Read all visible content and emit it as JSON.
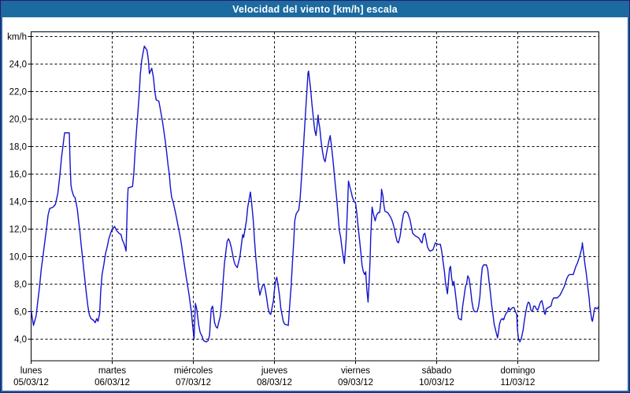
{
  "window": {
    "title": "Velocidad del viento [km/h] escala",
    "title_bar_color": "#1b6aa0",
    "border_outer_color": "#0b2d63",
    "border_inner_color": "#2e5fa5"
  },
  "chart_data": {
    "type": "line",
    "title": "Velocidad del viento [km/h] escala",
    "ylabel": "km/h",
    "grid": "dashed",
    "legend": "none",
    "colors": {
      "line": "#1414cc",
      "grid": "#000000",
      "frame": "#000000",
      "text": "#000000"
    },
    "y_axis": {
      "unit_label": "km/h",
      "range_shown": [
        2.5,
        26.5
      ],
      "gridline_step": 2,
      "ticks": [
        {
          "value": 26,
          "label": "km/h"
        },
        {
          "value": 24,
          "label": "24,0"
        },
        {
          "value": 22,
          "label": "22,0"
        },
        {
          "value": 20,
          "label": "20,0"
        },
        {
          "value": 18,
          "label": "18,0"
        },
        {
          "value": 16,
          "label": "16,0"
        },
        {
          "value": 14,
          "label": "14,0"
        },
        {
          "value": 12,
          "label": "12,0"
        },
        {
          "value": 10,
          "label": "10,0"
        },
        {
          "value": 8,
          "label": "8,0"
        },
        {
          "value": 6,
          "label": "6,0"
        },
        {
          "value": 4,
          "label": "4,0"
        }
      ]
    },
    "x_axis": {
      "unit": "hours_from_monday_00:00",
      "range": [
        0,
        168
      ],
      "days": [
        {
          "name": "lunes",
          "date": "05/03/12"
        },
        {
          "name": "martes",
          "date": "06/03/12"
        },
        {
          "name": "miércoles",
          "date": "07/03/12"
        },
        {
          "name": "jueves",
          "date": "08/03/12"
        },
        {
          "name": "viernes",
          "date": "09/03/12"
        },
        {
          "name": "sábado",
          "date": "10/03/12"
        },
        {
          "name": "domingo",
          "date": "11/03/12"
        }
      ]
    },
    "series": [
      [
        0,
        6.1
      ],
      [
        0.7,
        5.0
      ],
      [
        1.5,
        5.7
      ],
      [
        2,
        6.8
      ],
      [
        2.5,
        7.8
      ],
      [
        3,
        9.1
      ],
      [
        3.5,
        10.0
      ],
      [
        4,
        11.0
      ],
      [
        4.6,
        12.1
      ],
      [
        5,
        13.0
      ],
      [
        5.5,
        13.5
      ],
      [
        6.5,
        13.6
      ],
      [
        7.2,
        13.8
      ],
      [
        7.9,
        14.6
      ],
      [
        8.5,
        15.9
      ],
      [
        9,
        17.2
      ],
      [
        9.5,
        18.2
      ],
      [
        9.9,
        19.0
      ],
      [
        11.3,
        19.0
      ],
      [
        11.5,
        17.0
      ],
      [
        11.8,
        15.2
      ],
      [
        12.1,
        14.8
      ],
      [
        12.6,
        14.4
      ],
      [
        13,
        14.3
      ],
      [
        13.4,
        13.8
      ],
      [
        13.7,
        13.4
      ],
      [
        14,
        12.7
      ],
      [
        14.4,
        11.9
      ],
      [
        14.8,
        10.9
      ],
      [
        15.2,
        10.0
      ],
      [
        15.6,
        9.0
      ],
      [
        16,
        8.1
      ],
      [
        16.4,
        7.2
      ],
      [
        16.8,
        6.4
      ],
      [
        17.2,
        5.8
      ],
      [
        17.7,
        5.5
      ],
      [
        18.3,
        5.4
      ],
      [
        18.7,
        5.3
      ],
      [
        19,
        5.2
      ],
      [
        19.4,
        5.5
      ],
      [
        19.8,
        5.3
      ],
      [
        20.3,
        5.9
      ],
      [
        20.6,
        7.5
      ],
      [
        21,
        8.7
      ],
      [
        21.5,
        9.4
      ],
      [
        22,
        10.2
      ],
      [
        22.5,
        10.7
      ],
      [
        23,
        11.3
      ],
      [
        23.5,
        11.7
      ],
      [
        24,
        12.0
      ],
      [
        24.7,
        12.2
      ],
      [
        25.3,
        11.9
      ],
      [
        26,
        11.7
      ],
      [
        26.6,
        11.6
      ],
      [
        27,
        11.2
      ],
      [
        27.4,
        11.0
      ],
      [
        27.8,
        10.7
      ],
      [
        28.1,
        10.4
      ],
      [
        28.5,
        14.0
      ],
      [
        28.7,
        15.0
      ],
      [
        30,
        15.1
      ],
      [
        30.4,
        16.1
      ],
      [
        30.8,
        17.8
      ],
      [
        31.2,
        19.2
      ],
      [
        31.6,
        20.5
      ],
      [
        32,
        21.8
      ],
      [
        32.3,
        23.2
      ],
      [
        32.7,
        24.2
      ],
      [
        33.1,
        24.8
      ],
      [
        33.5,
        25.3
      ],
      [
        34.3,
        25.0
      ],
      [
        34.7,
        24.3
      ],
      [
        35,
        23.3
      ],
      [
        35.7,
        23.7
      ],
      [
        36.2,
        23.0
      ],
      [
        36.6,
        22.0
      ],
      [
        37,
        21.4
      ],
      [
        37.8,
        21.3
      ],
      [
        38.1,
        20.9
      ],
      [
        38.9,
        19.8
      ],
      [
        39.7,
        18.4
      ],
      [
        40.1,
        17.6
      ],
      [
        40.5,
        16.7
      ],
      [
        40.9,
        16.0
      ],
      [
        41.2,
        15.1
      ],
      [
        41.6,
        14.3
      ],
      [
        42,
        14.0
      ],
      [
        42.8,
        13.1
      ],
      [
        43.6,
        12.1
      ],
      [
        44.3,
        11.2
      ],
      [
        45.1,
        9.8
      ],
      [
        45.9,
        8.5
      ],
      [
        46.7,
        7.3
      ],
      [
        47.4,
        6.0
      ],
      [
        47.8,
        5.0
      ],
      [
        48.2,
        4.0
      ],
      [
        48.6,
        6.6
      ],
      [
        49,
        6.2
      ],
      [
        49.6,
        5.0
      ],
      [
        50,
        4.5
      ],
      [
        50.6,
        4.2
      ],
      [
        51,
        3.9
      ],
      [
        51.8,
        3.8
      ],
      [
        52.4,
        3.9
      ],
      [
        52.8,
        4.3
      ],
      [
        53.3,
        6.2
      ],
      [
        53.7,
        6.4
      ],
      [
        54.3,
        5.2
      ],
      [
        54.7,
        4.9
      ],
      [
        55.1,
        4.8
      ],
      [
        55.6,
        5.3
      ],
      [
        56,
        5.7
      ],
      [
        56.4,
        6.8
      ],
      [
        56.8,
        8.2
      ],
      [
        57.2,
        9.5
      ],
      [
        57.6,
        10.3
      ],
      [
        58,
        11.1
      ],
      [
        58.4,
        11.3
      ],
      [
        58.8,
        11.1
      ],
      [
        59.2,
        10.7
      ],
      [
        59.6,
        10.2
      ],
      [
        60,
        9.7
      ],
      [
        60.4,
        9.4
      ],
      [
        61,
        9.2
      ],
      [
        61.8,
        10.0
      ],
      [
        62.2,
        10.8
      ],
      [
        62.6,
        11.6
      ],
      [
        62.9,
        11.4
      ],
      [
        63.1,
        11.7
      ],
      [
        63.7,
        12.6
      ],
      [
        64.1,
        13.6
      ],
      [
        64.9,
        14.7
      ],
      [
        65.3,
        13.8
      ],
      [
        65.7,
        12.7
      ],
      [
        66.1,
        11.2
      ],
      [
        66.5,
        9.9
      ],
      [
        66.9,
        8.9
      ],
      [
        67.3,
        7.8
      ],
      [
        67.7,
        7.2
      ],
      [
        68.1,
        7.6
      ],
      [
        68.5,
        7.9
      ],
      [
        68.9,
        8.0
      ],
      [
        69.3,
        7.6
      ],
      [
        69.7,
        7.0
      ],
      [
        70.1,
        6.3
      ],
      [
        70.5,
        5.9
      ],
      [
        70.9,
        5.8
      ],
      [
        71.3,
        6.3
      ],
      [
        71.7,
        6.8
      ],
      [
        72,
        7.6
      ],
      [
        72.4,
        8.3
      ],
      [
        72.7,
        8.5
      ],
      [
        73.1,
        7.9
      ],
      [
        73.5,
        7.2
      ],
      [
        73.9,
        6.2
      ],
      [
        74.3,
        5.7
      ],
      [
        74.6,
        5.3
      ],
      [
        75,
        5.1
      ],
      [
        76.1,
        5.0
      ],
      [
        76.5,
        6.4
      ],
      [
        76.9,
        7.7
      ],
      [
        77.3,
        9.4
      ],
      [
        77.7,
        11.1
      ],
      [
        78,
        12.6
      ],
      [
        78.4,
        13.1
      ],
      [
        79.2,
        13.4
      ],
      [
        79.6,
        14.2
      ],
      [
        80,
        15.7
      ],
      [
        80.4,
        17.3
      ],
      [
        80.8,
        18.9
      ],
      [
        81.2,
        20.5
      ],
      [
        81.6,
        22.0
      ],
      [
        81.9,
        23.3
      ],
      [
        82.1,
        23.5
      ],
      [
        82.7,
        22.2
      ],
      [
        83.1,
        21.1
      ],
      [
        83.5,
        20.1
      ],
      [
        83.9,
        19.2
      ],
      [
        84.3,
        18.8
      ],
      [
        84.7,
        19.7
      ],
      [
        84.9,
        20.3
      ],
      [
        85.1,
        19.8
      ],
      [
        85.4,
        19.4
      ],
      [
        85.8,
        18.4
      ],
      [
        86.2,
        17.7
      ],
      [
        86.6,
        17.1
      ],
      [
        87,
        16.9
      ],
      [
        87.4,
        17.5
      ],
      [
        87.8,
        18.0
      ],
      [
        88.1,
        18.4
      ],
      [
        88.5,
        18.8
      ],
      [
        88.9,
        18.0
      ],
      [
        89.3,
        17.1
      ],
      [
        89.7,
        16.0
      ],
      [
        90.1,
        15.0
      ],
      [
        90.5,
        14.0
      ],
      [
        90.9,
        12.8
      ],
      [
        91.2,
        11.9
      ],
      [
        91.6,
        11.4
      ],
      [
        92,
        10.6
      ],
      [
        92.4,
        9.9
      ],
      [
        92.7,
        9.5
      ],
      [
        93.2,
        11.2
      ],
      [
        93.6,
        13.5
      ],
      [
        93.9,
        15.5
      ],
      [
        94.4,
        15.0
      ],
      [
        94.8,
        14.6
      ],
      [
        95.1,
        14.3
      ],
      [
        95.6,
        14.0
      ],
      [
        96,
        13.9
      ],
      [
        96.4,
        13.1
      ],
      [
        96.8,
        12.1
      ],
      [
        97.2,
        11.2
      ],
      [
        97.6,
        10.2
      ],
      [
        97.9,
        9.4
      ],
      [
        98.3,
        8.9
      ],
      [
        98.7,
        8.7
      ],
      [
        99,
        8.9
      ],
      [
        99.3,
        7.7
      ],
      [
        99.7,
        6.7
      ],
      [
        100,
        8.1
      ],
      [
        100.3,
        9.8
      ],
      [
        100.5,
        11.5
      ],
      [
        100.7,
        12.6
      ],
      [
        100.9,
        13.6
      ],
      [
        101.3,
        13.1
      ],
      [
        101.8,
        12.6
      ],
      [
        102.2,
        13.0
      ],
      [
        102.7,
        13.2
      ],
      [
        103.1,
        13.2
      ],
      [
        103.4,
        13.8
      ],
      [
        103.6,
        14.3
      ],
      [
        103.7,
        14.9
      ],
      [
        104.1,
        14.4
      ],
      [
        104.4,
        13.7
      ],
      [
        104.7,
        13.3
      ],
      [
        105.5,
        13.2
      ],
      [
        106.3,
        12.9
      ],
      [
        106.7,
        12.7
      ],
      [
        107.1,
        12.4
      ],
      [
        107.5,
        12.0
      ],
      [
        107.9,
        11.5
      ],
      [
        108.3,
        11.1
      ],
      [
        108.7,
        11.0
      ],
      [
        109.2,
        11.5
      ],
      [
        109.7,
        12.4
      ],
      [
        110.2,
        13.1
      ],
      [
        110.6,
        13.3
      ],
      [
        111.4,
        13.2
      ],
      [
        112.1,
        12.7
      ],
      [
        112.9,
        11.7
      ],
      [
        113.7,
        11.5
      ],
      [
        114.5,
        11.4
      ],
      [
        114.9,
        11.3
      ],
      [
        115.3,
        11.1
      ],
      [
        115.7,
        11.0
      ],
      [
        116.1,
        11.6
      ],
      [
        116.5,
        11.7
      ],
      [
        116.9,
        11.2
      ],
      [
        117.3,
        10.7
      ],
      [
        117.7,
        10.5
      ],
      [
        118.1,
        10.4
      ],
      [
        118.9,
        10.5
      ],
      [
        119.6,
        11.0
      ],
      [
        120.4,
        10.9
      ],
      [
        121.1,
        10.9
      ],
      [
        121.5,
        10.4
      ],
      [
        121.9,
        9.6
      ],
      [
        122.3,
        8.9
      ],
      [
        122.6,
        8.1
      ],
      [
        123.2,
        7.3
      ],
      [
        123.6,
        8.5
      ],
      [
        123.8,
        9.1
      ],
      [
        124.1,
        9.3
      ],
      [
        124.4,
        8.5
      ],
      [
        124.8,
        7.9
      ],
      [
        125.1,
        8.2
      ],
      [
        125.4,
        7.6
      ],
      [
        125.8,
        6.8
      ],
      [
        126.2,
        5.9
      ],
      [
        126.5,
        5.5
      ],
      [
        127.3,
        5.4
      ],
      [
        127.7,
        6.4
      ],
      [
        128.1,
        7.1
      ],
      [
        128.5,
        7.8
      ],
      [
        128.9,
        8.1
      ],
      [
        129.2,
        8.6
      ],
      [
        129.6,
        8.4
      ],
      [
        130,
        7.7
      ],
      [
        130.4,
        6.8
      ],
      [
        130.8,
        6.2
      ],
      [
        131.2,
        6.0
      ],
      [
        132,
        6.0
      ],
      [
        132.4,
        6.4
      ],
      [
        132.8,
        7.1
      ],
      [
        133.1,
        8.2
      ],
      [
        133.5,
        9.2
      ],
      [
        133.9,
        9.4
      ],
      [
        134.7,
        9.4
      ],
      [
        135.1,
        9.1
      ],
      [
        135.5,
        8.2
      ],
      [
        135.9,
        7.4
      ],
      [
        136.3,
        6.4
      ],
      [
        136.7,
        5.7
      ],
      [
        137,
        5.1
      ],
      [
        137.4,
        4.7
      ],
      [
        137.8,
        4.3
      ],
      [
        138,
        4.1
      ],
      [
        138.3,
        4.5
      ],
      [
        138.6,
        5.1
      ],
      [
        139,
        5.4
      ],
      [
        139.4,
        5.5
      ],
      [
        139.8,
        5.4
      ],
      [
        140.2,
        5.7
      ],
      [
        140.6,
        5.9
      ],
      [
        141,
        6.0
      ],
      [
        141.3,
        6.3
      ],
      [
        141.7,
        6.1
      ],
      [
        142.1,
        6.2
      ],
      [
        142.5,
        6.3
      ],
      [
        142.9,
        6.3
      ],
      [
        143.3,
        6.0
      ],
      [
        143.7,
        5.8
      ],
      [
        143.9,
        4.7
      ],
      [
        144.2,
        4.0
      ],
      [
        144.6,
        3.8
      ],
      [
        145,
        4.0
      ],
      [
        145.6,
        4.7
      ],
      [
        145.9,
        5.3
      ],
      [
        146.3,
        5.9
      ],
      [
        146.7,
        6.4
      ],
      [
        147.1,
        6.7
      ],
      [
        147.5,
        6.6
      ],
      [
        147.9,
        6.1
      ],
      [
        148.3,
        6.0
      ],
      [
        148.7,
        6.4
      ],
      [
        149.1,
        6.4
      ],
      [
        149.5,
        6.2
      ],
      [
        149.9,
        6.1
      ],
      [
        150.3,
        6.4
      ],
      [
        150.7,
        6.7
      ],
      [
        151.1,
        6.8
      ],
      [
        151.5,
        6.4
      ],
      [
        151.9,
        5.9
      ],
      [
        152.1,
        5.8
      ],
      [
        152.4,
        6.2
      ],
      [
        153,
        6.3
      ],
      [
        153.8,
        6.4
      ],
      [
        154.2,
        6.8
      ],
      [
        154.6,
        7.0
      ],
      [
        155.7,
        7.0
      ],
      [
        156.1,
        7.1
      ],
      [
        156.5,
        7.2
      ],
      [
        156.9,
        7.4
      ],
      [
        157.3,
        7.6
      ],
      [
        157.7,
        7.8
      ],
      [
        158.1,
        8.1
      ],
      [
        158.5,
        8.4
      ],
      [
        158.9,
        8.6
      ],
      [
        159.3,
        8.7
      ],
      [
        160.4,
        8.7
      ],
      [
        160.8,
        9.0
      ],
      [
        161.2,
        9.3
      ],
      [
        161.6,
        9.5
      ],
      [
        162,
        9.8
      ],
      [
        162.4,
        10.1
      ],
      [
        162.7,
        10.4
      ],
      [
        163,
        10.7
      ],
      [
        163.1,
        11.0
      ],
      [
        163.5,
        10.2
      ],
      [
        163.9,
        9.4
      ],
      [
        164.2,
        8.9
      ],
      [
        164.5,
        8.3
      ],
      [
        164.8,
        7.6
      ],
      [
        165.1,
        7.0
      ],
      [
        165.3,
        6.4
      ],
      [
        165.6,
        5.9
      ],
      [
        165.9,
        5.4
      ],
      [
        166.1,
        5.3
      ],
      [
        166.4,
        5.7
      ],
      [
        166.6,
        6.1
      ],
      [
        166.9,
        6.3
      ],
      [
        167.5,
        6.2
      ],
      [
        168,
        6.4
      ]
    ]
  }
}
